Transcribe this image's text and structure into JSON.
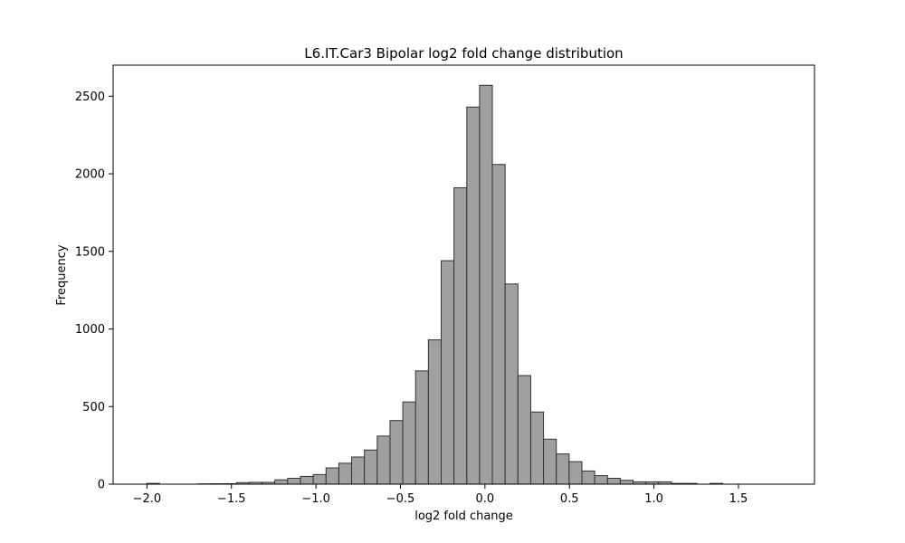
{
  "chart_data": {
    "type": "bar",
    "title": "L6.IT.Car3 Bipolar log2 fold change distribution",
    "xlabel": "log2 fold change",
    "ylabel": "Frequency",
    "xlim": [
      -2.2,
      1.95
    ],
    "ylim": [
      0,
      2700
    ],
    "x_ticks": [
      -2.0,
      -1.5,
      -1.0,
      -0.5,
      0.0,
      0.5,
      1.0,
      1.5
    ],
    "x_tick_labels": [
      "−2.0",
      "−1.5",
      "−1.0",
      "−0.5",
      "0.0",
      "0.5",
      "1.0",
      "1.5"
    ],
    "y_ticks": [
      0,
      500,
      1000,
      1500,
      2000,
      2500
    ],
    "y_tick_labels": [
      "0",
      "500",
      "1000",
      "1500",
      "2000",
      "2500"
    ],
    "bin_start": -2.0,
    "bin_width": 0.0757,
    "values": [
      5,
      0,
      0,
      0,
      2,
      3,
      3,
      10,
      12,
      12,
      28,
      38,
      50,
      62,
      105,
      135,
      175,
      220,
      310,
      410,
      530,
      730,
      930,
      1440,
      1910,
      2430,
      2570,
      2060,
      1290,
      700,
      465,
      290,
      195,
      145,
      85,
      55,
      38,
      25,
      15,
      15,
      15,
      5,
      5,
      0,
      5,
      0,
      0,
      0,
      0,
      0
    ],
    "bar_fill": "#a0a0a0",
    "bar_edge": "#333333",
    "grid": false,
    "legend": "none"
  }
}
